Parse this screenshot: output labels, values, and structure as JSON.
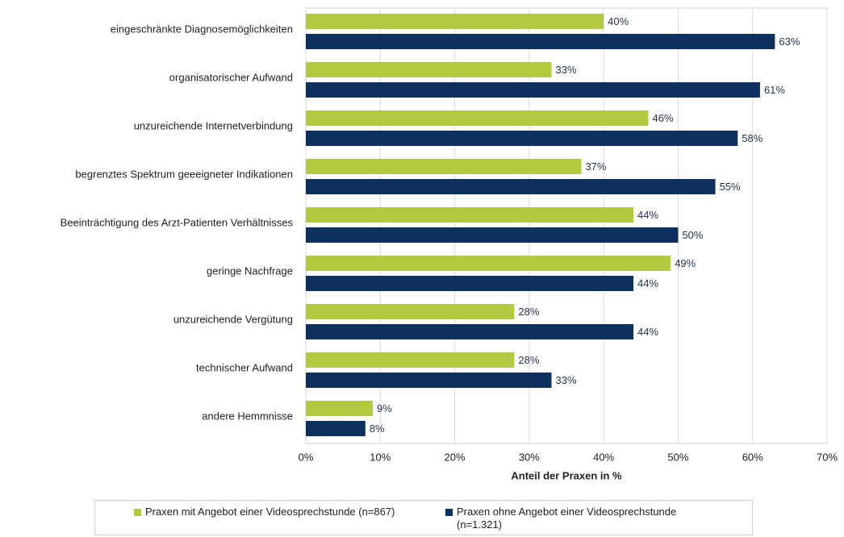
{
  "chart_data": {
    "type": "bar",
    "orientation": "horizontal",
    "x_label": "Anteil der Praxen in %",
    "categories": [
      "eingeschränkte Diagnosemöglichkeiten",
      "organisatorischer Aufwand",
      "unzureichende Internetverbindung",
      "begrenztes Spektrum geeeigneter Indikationen",
      "Beeinträchtigung des Arzt-Patienten Verhältnisses",
      "geringe Nachfrage",
      "unzureichende Vergütung",
      "technischer Aufwand",
      "andere Hemmnisse"
    ],
    "series": [
      {
        "name": "Praxen mit Angebot einer Videosprechstunde (n=867)",
        "color": "#b3c93f",
        "values": [
          40,
          33,
          46,
          37,
          44,
          49,
          28,
          28,
          9
        ],
        "value_labels": [
          "40%",
          "33%",
          "46%",
          "37%",
          "44%",
          "49%",
          "28%",
          "28%",
          "9%"
        ]
      },
      {
        "name": "Praxen ohne Angebot einer Videosprechstunde (n=1.321)",
        "color": "#0d3060",
        "values": [
          63,
          61,
          58,
          55,
          50,
          44,
          44,
          33,
          8
        ],
        "value_labels": [
          "63%",
          "61%",
          "58%",
          "55%",
          "50%",
          "44%",
          "44%",
          "33%",
          "8%"
        ]
      }
    ],
    "xlim": [
      0,
      70
    ],
    "xticks": [
      {
        "value": 0,
        "label": "0%"
      },
      {
        "value": 10,
        "label": "10%"
      },
      {
        "value": 20,
        "label": "20%"
      },
      {
        "value": 30,
        "label": "30%"
      },
      {
        "value": 40,
        "label": "40%"
      },
      {
        "value": 50,
        "label": "50%"
      },
      {
        "value": 60,
        "label": "60%"
      },
      {
        "value": 70,
        "label": "70%"
      }
    ],
    "grid": true,
    "legend": "bottom"
  }
}
